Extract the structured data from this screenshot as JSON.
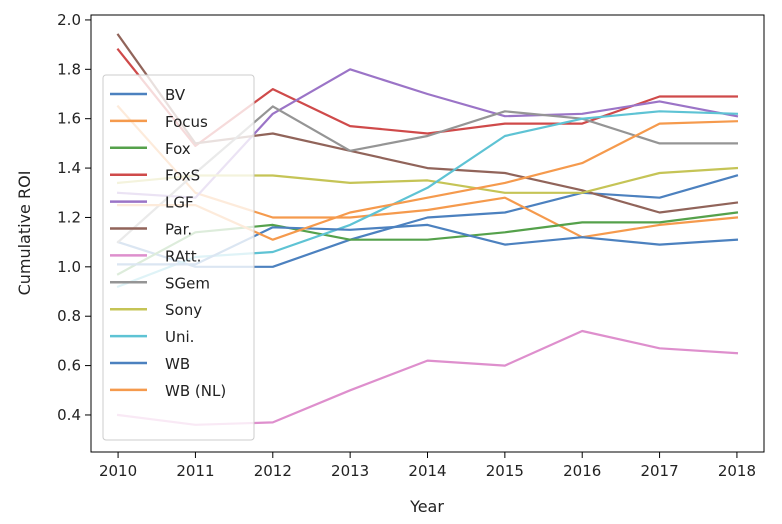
{
  "chart_data": {
    "type": "line",
    "title": "",
    "xlabel": "Year",
    "ylabel": "Cumulative ROI",
    "xlim": [
      2009.65,
      2018.35
    ],
    "ylim": [
      0.25,
      2.02
    ],
    "xticks": [
      2010,
      2011,
      2012,
      2013,
      2014,
      2015,
      2016,
      2017,
      2018
    ],
    "yticks": [
      "0.4",
      "0.6",
      "0.8",
      "1.0",
      "1.2",
      "1.4",
      "1.6",
      "1.8",
      "2.0"
    ],
    "grid": false,
    "legend_position": "left",
    "x": [
      2010,
      2011,
      2012,
      2013,
      2014,
      2015,
      2016,
      2017,
      2018
    ],
    "series": [
      {
        "name": "BV",
        "color": "#4c81bf",
        "values": [
          1.1,
          1.0,
          1.0,
          1.11,
          1.2,
          1.22,
          1.3,
          1.28,
          1.37
        ]
      },
      {
        "name": "Focus",
        "color": "#f59a4d",
        "values": [
          1.65,
          1.3,
          1.2,
          1.2,
          1.23,
          1.28,
          1.12,
          1.17,
          1.2
        ]
      },
      {
        "name": "Fox",
        "color": "#55a14b",
        "values": [
          0.97,
          1.14,
          1.17,
          1.11,
          1.11,
          1.14,
          1.18,
          1.18,
          1.22
        ]
      },
      {
        "name": "FoxS",
        "color": "#cf4a4a",
        "values": [
          1.88,
          1.49,
          1.72,
          1.57,
          1.54,
          1.58,
          1.58,
          1.69,
          1.69
        ]
      },
      {
        "name": "LGF",
        "color": "#9b74c7",
        "values": [
          1.3,
          1.28,
          1.62,
          1.8,
          1.7,
          1.61,
          1.62,
          1.67,
          1.61
        ]
      },
      {
        "name": "Par.",
        "color": "#91645a",
        "values": [
          1.94,
          1.5,
          1.54,
          1.47,
          1.4,
          1.38,
          1.31,
          1.22,
          1.26
        ]
      },
      {
        "name": "RAtt.",
        "color": "#de8fcd",
        "values": [
          0.4,
          0.36,
          0.37,
          0.5,
          0.62,
          0.6,
          0.74,
          0.67,
          0.65
        ]
      },
      {
        "name": "SGem",
        "color": "#959595",
        "values": [
          1.1,
          1.38,
          1.65,
          1.47,
          1.53,
          1.63,
          1.6,
          1.5,
          1.5
        ]
      },
      {
        "name": "Sony",
        "color": "#c5c456",
        "values": [
          1.34,
          1.37,
          1.37,
          1.34,
          1.35,
          1.3,
          1.3,
          1.38,
          1.4
        ]
      },
      {
        "name": "Uni.",
        "color": "#5ec3d4",
        "values": [
          0.92,
          1.04,
          1.06,
          1.17,
          1.32,
          1.53,
          1.6,
          1.63,
          1.62
        ]
      },
      {
        "name": "WB",
        "color": "#4c81bf",
        "values": [
          1.01,
          1.01,
          1.16,
          1.15,
          1.17,
          1.09,
          1.12,
          1.09,
          1.11
        ]
      },
      {
        "name": "WB (NL)",
        "color": "#f59a4d",
        "values": [
          1.25,
          1.25,
          1.11,
          1.22,
          1.28,
          1.34,
          1.42,
          1.58,
          1.59
        ]
      }
    ]
  }
}
